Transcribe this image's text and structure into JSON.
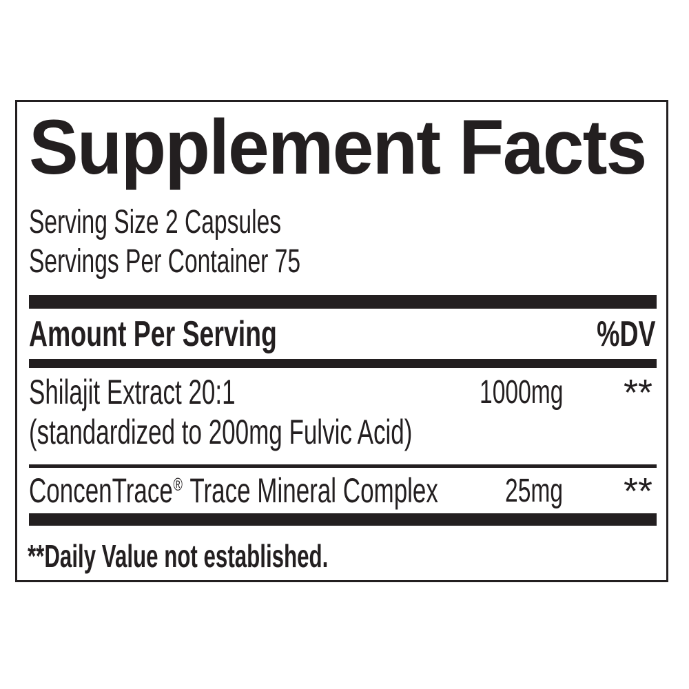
{
  "label": {
    "title": "Supplement Facts",
    "serving_size": "Serving Size 2 Capsules",
    "servings_per_container": "Servings Per Container 75",
    "header": {
      "amount_per_serving": "Amount Per Serving",
      "dv": "%DV"
    },
    "rows": [
      {
        "name": "Shilajit Extract 20:1",
        "detail": "(standardized to 200mg Fulvic Acid)",
        "amount": "1000mg",
        "dv": "**"
      },
      {
        "name_brand": "ConcenTrace",
        "reg_mark": "®",
        "name_rest": " Trace Mineral Complex",
        "amount": "25mg",
        "dv": "**"
      }
    ],
    "footnote": "**Daily Value not established."
  },
  "colors": {
    "ink": "#231f20",
    "background": "#ffffff"
  }
}
